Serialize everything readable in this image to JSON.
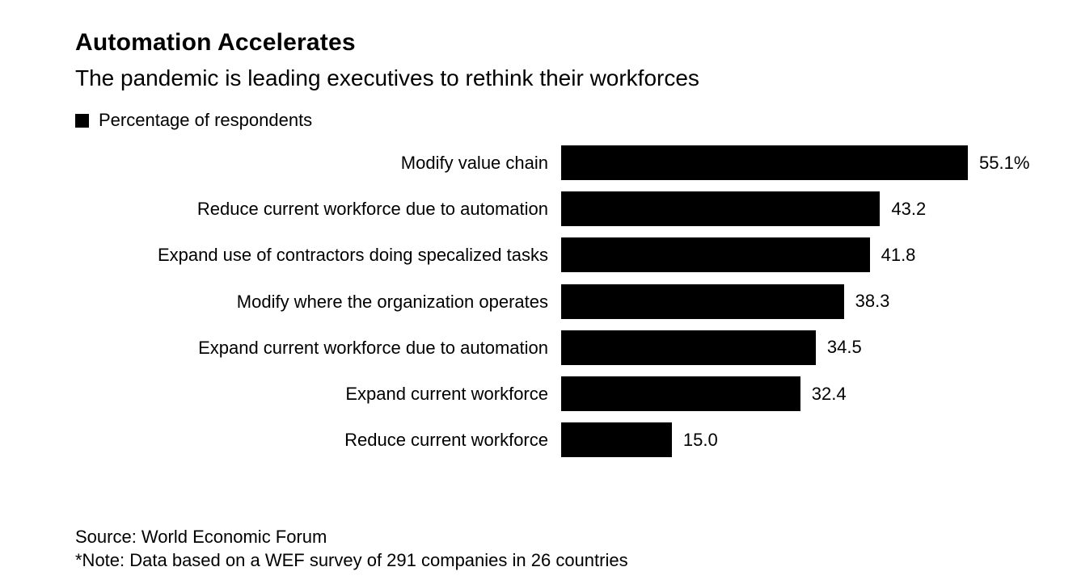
{
  "header": {
    "title": "Automation Accelerates",
    "subtitle": "The pandemic is leading executives to rethink their workforces"
  },
  "legend": {
    "label": "Percentage of respondents",
    "swatch_color": "#000000"
  },
  "chart_data": {
    "type": "bar",
    "orientation": "horizontal",
    "title": "Automation Accelerates",
    "subtitle": "The pandemic is leading executives to rethink their workforces",
    "legend_entries": [
      "Percentage of respondents"
    ],
    "categories": [
      "Modify value chain",
      "Reduce current workforce due to automation",
      "Expand use of contractors doing specalized tasks",
      "Modify where the organization operates",
      "Expand current workforce due to automation",
      "Expand current workforce",
      "Reduce current workforce"
    ],
    "values": [
      55.1,
      43.2,
      41.8,
      38.3,
      34.5,
      32.4,
      15.0
    ],
    "value_labels": [
      "55.1%",
      "43.2",
      "41.8",
      "38.3",
      "34.5",
      "32.4",
      "15.0"
    ],
    "xlim": [
      0,
      55.1
    ],
    "grid": false,
    "bar_color": "#000000",
    "background_color": "#ffffff"
  },
  "footer": {
    "source": "Source: World Economic Forum",
    "note": "*Note: Data based on a WEF survey of 291 companies in 26 countries"
  }
}
